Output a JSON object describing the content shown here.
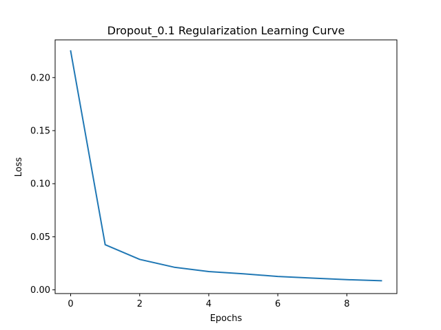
{
  "chart_data": {
    "type": "line",
    "title": "Dropout_0.1 Regularization Learning Curve",
    "xlabel": "Epochs",
    "ylabel": "Loss",
    "xlim": [
      -0.45,
      9.45
    ],
    "ylim": [
      -0.0035,
      0.2355
    ],
    "x_ticks": [
      0,
      2,
      4,
      6,
      8
    ],
    "y_ticks": [
      0.0,
      0.05,
      0.1,
      0.15,
      0.2
    ],
    "y_tick_labels": [
      "0.00",
      "0.05",
      "0.10",
      "0.15",
      "0.20"
    ],
    "grid": false,
    "series": [
      {
        "color": "#1f77b4",
        "x": [
          0,
          1,
          2,
          3,
          4,
          5,
          6,
          7,
          8,
          9
        ],
        "y": [
          0.225,
          0.0425,
          0.0287,
          0.0213,
          0.0172,
          0.0151,
          0.0126,
          0.0111,
          0.0096,
          0.0086
        ]
      }
    ]
  }
}
